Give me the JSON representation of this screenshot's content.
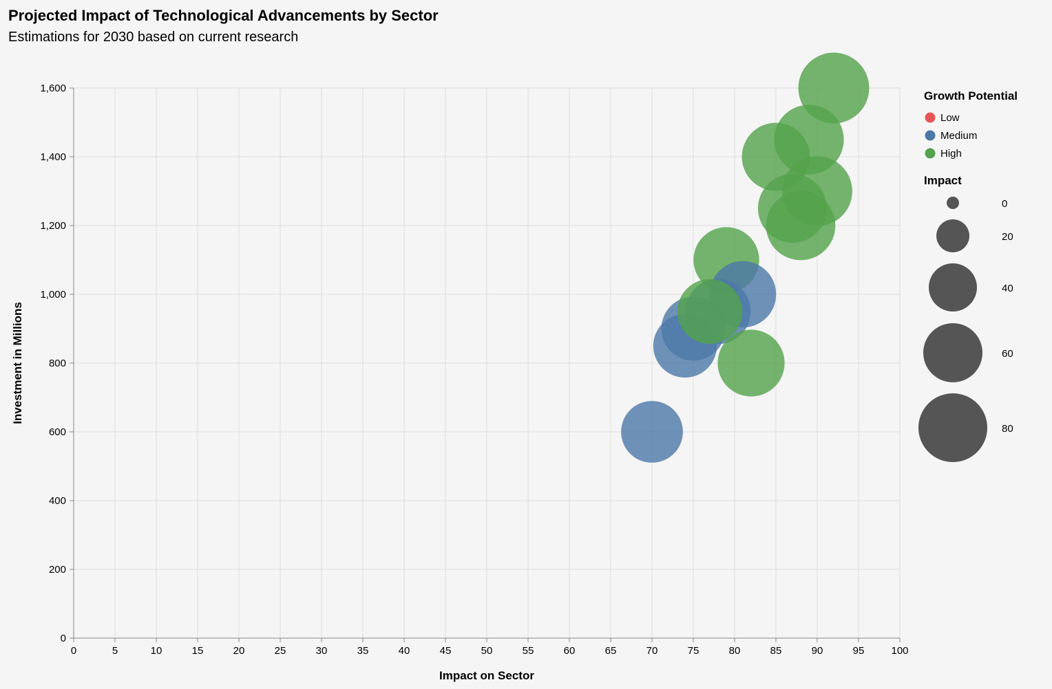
{
  "chart_data": {
    "type": "scatter",
    "title": "Projected Impact of Technological Advancements by Sector",
    "subtitle": "Estimations for 2030 based on current research",
    "xlabel": "Impact on Sector",
    "ylabel": "Investment in Millions",
    "xlim": [
      0,
      100
    ],
    "ylim": [
      0,
      1600
    ],
    "x_ticks": [
      "0",
      "5",
      "10",
      "15",
      "20",
      "25",
      "30",
      "35",
      "40",
      "45",
      "50",
      "55",
      "60",
      "65",
      "70",
      "75",
      "80",
      "85",
      "90",
      "95",
      "100"
    ],
    "y_ticks": [
      "0",
      "200",
      "400",
      "600",
      "800",
      "1,000",
      "1,200",
      "1,400",
      "1,600"
    ],
    "grid": true,
    "points": [
      {
        "x": 92,
        "y": 1600,
        "size": 92,
        "growth": "High"
      },
      {
        "x": 89,
        "y": 1450,
        "size": 89,
        "growth": "High"
      },
      {
        "x": 85,
        "y": 1400,
        "size": 85,
        "growth": "High"
      },
      {
        "x": 90,
        "y": 1300,
        "size": 90,
        "growth": "High"
      },
      {
        "x": 87,
        "y": 1250,
        "size": 87,
        "growth": "High"
      },
      {
        "x": 88,
        "y": 1200,
        "size": 88,
        "growth": "High"
      },
      {
        "x": 79,
        "y": 1100,
        "size": 79,
        "growth": "High"
      },
      {
        "x": 81,
        "y": 1000,
        "size": 81,
        "growth": "Medium"
      },
      {
        "x": 78,
        "y": 950,
        "size": 78,
        "growth": "Medium"
      },
      {
        "x": 75,
        "y": 900,
        "size": 75,
        "growth": "Medium"
      },
      {
        "x": 74,
        "y": 850,
        "size": 74,
        "growth": "Medium"
      },
      {
        "x": 77,
        "y": 950,
        "size": 77,
        "growth": "High"
      },
      {
        "x": 82,
        "y": 800,
        "size": 82,
        "growth": "High"
      },
      {
        "x": 70,
        "y": 600,
        "size": 70,
        "growth": "Medium"
      }
    ],
    "color_legend": {
      "title": "Growth Potential",
      "items": [
        {
          "label": "Low",
          "color": "#e45756"
        },
        {
          "label": "Medium",
          "color": "#4c78a8"
        },
        {
          "label": "High",
          "color": "#54a24b"
        }
      ]
    },
    "size_legend": {
      "title": "Impact",
      "values": [
        "0",
        "20",
        "40",
        "60",
        "80"
      ]
    },
    "legend_position": "right"
  }
}
